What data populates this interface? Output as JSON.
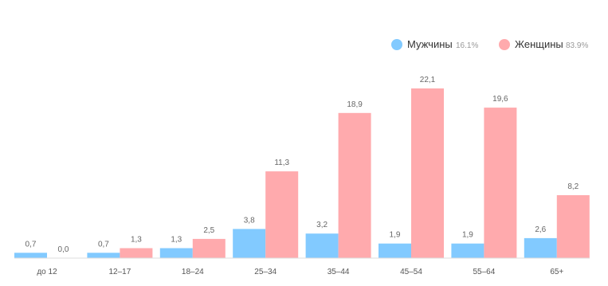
{
  "chart_data": {
    "type": "bar",
    "categories": [
      "до 12",
      "12–17",
      "18–24",
      "25–34",
      "35–44",
      "45–54",
      "55–64",
      "65+"
    ],
    "series": [
      {
        "name": "Мужчины",
        "share_label": "16.1%",
        "color": "#82caff",
        "values": [
          0.7,
          0.7,
          1.3,
          3.8,
          3.2,
          1.9,
          1.9,
          2.6
        ],
        "value_labels": [
          "0,7",
          "0,7",
          "1,3",
          "3,8",
          "3,2",
          "1,9",
          "1,9",
          "2,6"
        ]
      },
      {
        "name": "Женщины",
        "share_label": "83.9%",
        "color": "#ffaaad",
        "values": [
          0.0,
          1.3,
          2.5,
          11.3,
          18.9,
          22.1,
          19.6,
          8.2
        ],
        "value_labels": [
          "0,0",
          "1,3",
          "2,5",
          "11,3",
          "18,9",
          "22,1",
          "19,6",
          "8,2"
        ]
      }
    ],
    "ylim": [
      0,
      22.1
    ],
    "legend_position": "top-right",
    "grid": false
  }
}
